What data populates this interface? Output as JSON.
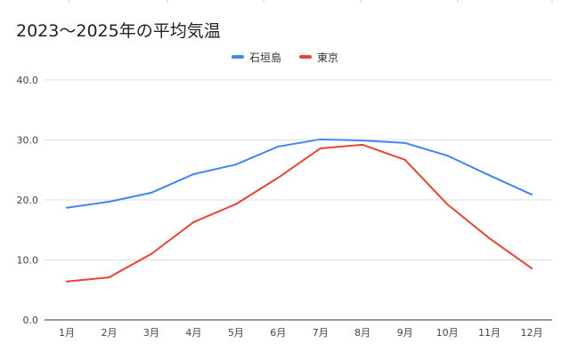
{
  "chart_data": {
    "type": "line",
    "title": "2023〜2025年の平均気温",
    "categories": [
      "1月",
      "2月",
      "3月",
      "4月",
      "5月",
      "6月",
      "7月",
      "8月",
      "9月",
      "10月",
      "11月",
      "12月"
    ],
    "series": [
      {
        "name": "石垣島",
        "color": "#4285f4",
        "values": [
          18.7,
          19.7,
          21.2,
          24.3,
          25.9,
          28.9,
          30.1,
          29.9,
          29.5,
          27.4,
          24.1,
          20.9
        ]
      },
      {
        "name": "東京",
        "color": "#ea4335",
        "values": [
          6.4,
          7.1,
          11.0,
          16.3,
          19.3,
          23.7,
          28.6,
          29.2,
          26.7,
          19.3,
          13.6,
          8.6
        ]
      }
    ],
    "ylim": [
      0,
      40
    ],
    "yticks": [
      "0.0",
      "10.0",
      "20.0",
      "30.0",
      "40.0"
    ],
    "xlabel": "",
    "ylabel": "",
    "grid": true,
    "legend": "top-center"
  }
}
